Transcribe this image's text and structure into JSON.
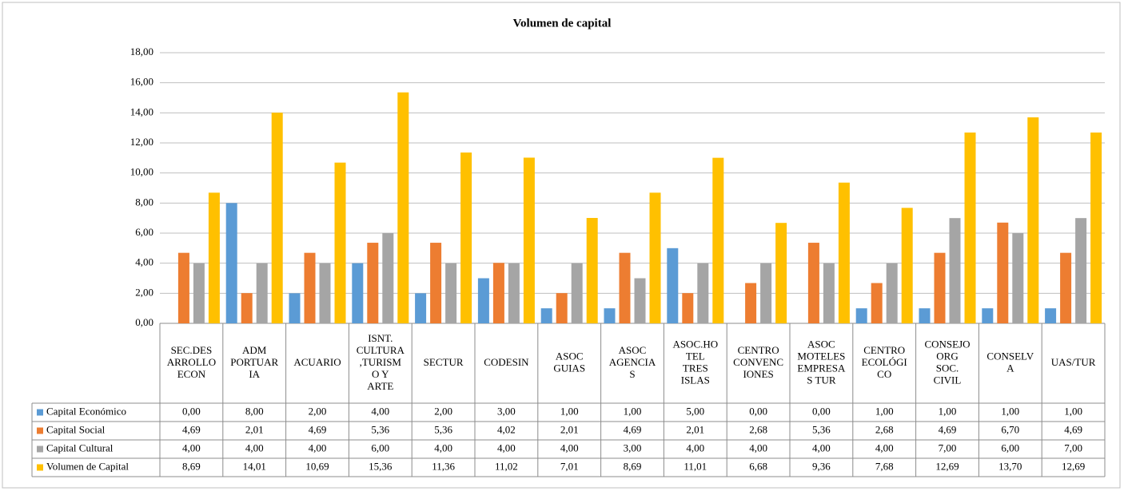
{
  "chart_data": {
    "type": "bar",
    "title": "Volumen de capital",
    "categories": [
      "SEC.DESARROLLO ECON",
      "ADM PORTUARIA",
      "ACUARIO",
      "ISNT. CULTURA,TURISMO Y ARTE",
      "SECTUR",
      "CODESIN",
      "ASOC GUIAS",
      "ASOC AGENCIAS",
      "ASOC.HOTEL TRES ISLAS",
      "CENTRO CONVENCIONES",
      "ASOC MOTELES EMPRESAS TUR",
      "CENTRO ECOLÓGICO",
      "CONSEJO ORG SOC. CIVIL",
      "CONSELVA",
      "UAS/TUR"
    ],
    "series": [
      {
        "name": "Capital Económico",
        "color": "#5b9bd5",
        "values": [
          0,
          8,
          2,
          4,
          2,
          3,
          1,
          1,
          5,
          0,
          0,
          1,
          1,
          1,
          1
        ],
        "value_labels": [
          "0,00",
          "8,00",
          "2,00",
          "4,00",
          "2,00",
          "3,00",
          "1,00",
          "1,00",
          "5,00",
          "0,00",
          "0,00",
          "1,00",
          "1,00",
          "1,00",
          "1,00"
        ]
      },
      {
        "name": "Capital Social",
        "color": "#ed7d31",
        "values": [
          4.69,
          2.01,
          4.69,
          5.36,
          5.36,
          4.02,
          2.01,
          4.69,
          2.01,
          2.68,
          5.36,
          2.68,
          4.69,
          6.7,
          4.69
        ],
        "value_labels": [
          "4,69",
          "2,01",
          "4,69",
          "5,36",
          "5,36",
          "4,02",
          "2,01",
          "4,69",
          "2,01",
          "2,68",
          "5,36",
          "2,68",
          "4,69",
          "6,70",
          "4,69"
        ]
      },
      {
        "name": "Capital Cultural",
        "color": "#a5a5a5",
        "values": [
          4,
          4,
          4,
          6,
          4,
          4,
          4,
          3,
          4,
          4,
          4,
          4,
          7,
          6,
          7
        ],
        "value_labels": [
          "4,00",
          "4,00",
          "4,00",
          "6,00",
          "4,00",
          "4,00",
          "4,00",
          "3,00",
          "4,00",
          "4,00",
          "4,00",
          "4,00",
          "7,00",
          "6,00",
          "7,00"
        ]
      },
      {
        "name": "Volumen de Capital",
        "color": "#ffc000",
        "values": [
          8.69,
          14.01,
          10.69,
          15.36,
          11.36,
          11.02,
          7.01,
          8.69,
          11.01,
          6.68,
          9.36,
          7.68,
          12.69,
          13.7,
          12.69
        ],
        "value_labels": [
          "8,69",
          "14,01",
          "10,69",
          "15,36",
          "11,36",
          "11,02",
          "7,01",
          "8,69",
          "11,01",
          "6,68",
          "9,36",
          "7,68",
          "12,69",
          "13,70",
          "12,69"
        ]
      }
    ],
    "ylim": [
      0,
      18
    ],
    "yticks": [
      {
        "value": 0,
        "label": "0,00"
      },
      {
        "value": 2,
        "label": "2,00"
      },
      {
        "value": 4,
        "label": "4,00"
      },
      {
        "value": 6,
        "label": "6,00"
      },
      {
        "value": 8,
        "label": "8,00"
      },
      {
        "value": 10,
        "label": "10,00"
      },
      {
        "value": 12,
        "label": "12,00"
      },
      {
        "value": 14,
        "label": "14,00"
      },
      {
        "value": 16,
        "label": "16,00"
      },
      {
        "value": 18,
        "label": "18,00"
      }
    ],
    "grid": true
  }
}
